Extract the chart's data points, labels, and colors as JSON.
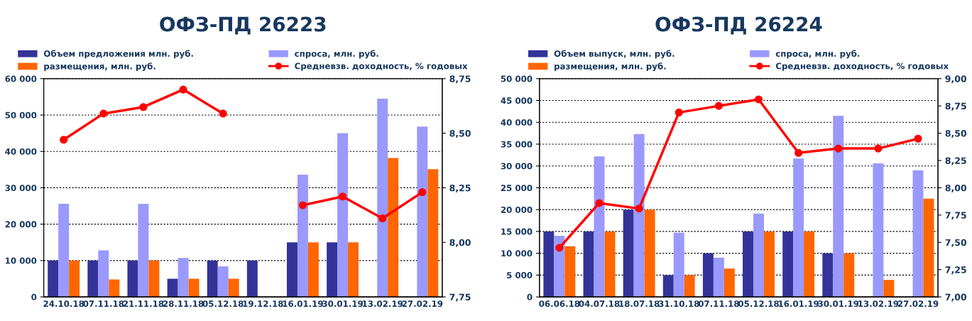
{
  "chart_data": [
    {
      "type": "bar",
      "title": "ОФЗ-ПД 26223",
      "categories": [
        "24.10.18",
        "07.11.18",
        "21.11.18",
        "28.11.18",
        "05.12.18",
        "19.12.18",
        "16.01.19",
        "30.01.19",
        "13.02.19",
        "27.02.19"
      ],
      "series": [
        {
          "name": "Объем предложения млн. руб.",
          "color": "#333399",
          "values": [
            10000,
            10000,
            10000,
            5000,
            10000,
            10000,
            15000,
            15000,
            0,
            0
          ]
        },
        {
          "name": "спроса, млн. руб.",
          "color": "#9999ff",
          "values": [
            25600,
            12800,
            25600,
            10700,
            8400,
            0,
            33600,
            45000,
            54500,
            46800
          ]
        },
        {
          "name": "размещения, млн. руб.",
          "color": "#ff6600",
          "values": [
            10000,
            4800,
            10000,
            5000,
            5000,
            0,
            15000,
            15000,
            38200,
            35100
          ]
        },
        {
          "name": "Средневзв. доходность, % годовых",
          "color": "#ff0000",
          "type": "line",
          "axis": "y2",
          "values": [
            8.47,
            8.59,
            8.62,
            8.7,
            8.59,
            null,
            8.17,
            8.21,
            8.11,
            8.23
          ]
        }
      ],
      "ylim": [
        0,
        60000
      ],
      "yticks": [
        0,
        {
          "value": 10000,
          "label": "10 000"
        },
        {
          "value": 20000,
          "label": "20 000"
        },
        {
          "value": 30000,
          "label": "30 000"
        },
        {
          "value": 40000,
          "label": "40 000"
        },
        {
          "value": 50000,
          "label": "50 000"
        },
        {
          "value": 60000,
          "label": "60 000"
        }
      ],
      "y2lim": [
        7.75,
        8.75
      ],
      "y2ticks": [
        {
          "value": 7.75,
          "label": "7,75"
        },
        {
          "value": 8.0,
          "label": "8,00"
        },
        {
          "value": 8.25,
          "label": "8,25"
        },
        {
          "value": 8.5,
          "label": "8,50"
        },
        {
          "value": 8.75,
          "label": "8,75"
        }
      ],
      "grid": true,
      "legend": "top",
      "marker": "circle"
    },
    {
      "type": "bar",
      "title": "ОФЗ-ПД 26224",
      "categories": [
        "06.06.18",
        "04.07.18",
        "18.07.18",
        "31.10.18",
        "07.11.18",
        "05.12.18",
        "16.01.19",
        "30.01.19",
        "13.02.19",
        "27.02.19"
      ],
      "series": [
        {
          "name": "Объем выпуск, млн. руб.",
          "color": "#333399",
          "values": [
            15000,
            15000,
            20000,
            5000,
            10000,
            15000,
            15000,
            10000,
            0,
            0
          ]
        },
        {
          "name": "спроса, млн. руб.",
          "color": "#9999ff",
          "values": [
            14000,
            32200,
            37300,
            14700,
            9000,
            19100,
            31700,
            41500,
            30600,
            29000
          ]
        },
        {
          "name": "размещения, млн. руб.",
          "color": "#ff6600",
          "values": [
            11600,
            15000,
            20000,
            5000,
            6500,
            15000,
            15000,
            10000,
            3900,
            22500
          ]
        },
        {
          "name": "Средневзв. доходность, % годовых",
          "color": "#ff0000",
          "type": "line",
          "axis": "y2",
          "values": [
            7.45,
            7.86,
            7.81,
            8.69,
            8.75,
            8.81,
            8.32,
            8.36,
            8.36,
            8.45
          ]
        }
      ],
      "ylim": [
        0,
        50000
      ],
      "yticks": [
        0,
        {
          "value": 5000,
          "label": "5 000"
        },
        {
          "value": 10000,
          "label": "10 000"
        },
        {
          "value": 15000,
          "label": "15 000"
        },
        {
          "value": 20000,
          "label": "20 000"
        },
        {
          "value": 25000,
          "label": "25 000"
        },
        {
          "value": 30000,
          "label": "30 000"
        },
        {
          "value": 35000,
          "label": "35 000"
        },
        {
          "value": 40000,
          "label": "40 000"
        },
        {
          "value": 45000,
          "label": "45 000"
        },
        {
          "value": 50000,
          "label": "50 000"
        }
      ],
      "y2lim": [
        7.0,
        9.0
      ],
      "y2ticks": [
        {
          "value": 7.0,
          "label": "7,00"
        },
        {
          "value": 7.25,
          "label": "7,25"
        },
        {
          "value": 7.5,
          "label": "7,50"
        },
        {
          "value": 7.75,
          "label": "7,75"
        },
        {
          "value": 8.0,
          "label": "8,00"
        },
        {
          "value": 8.25,
          "label": "8,25"
        },
        {
          "value": 8.5,
          "label": "8,50"
        },
        {
          "value": 8.75,
          "label": "8,75"
        },
        {
          "value": 9.0,
          "label": "9,00"
        }
      ],
      "grid": true,
      "legend": "top",
      "marker": "circle"
    }
  ]
}
